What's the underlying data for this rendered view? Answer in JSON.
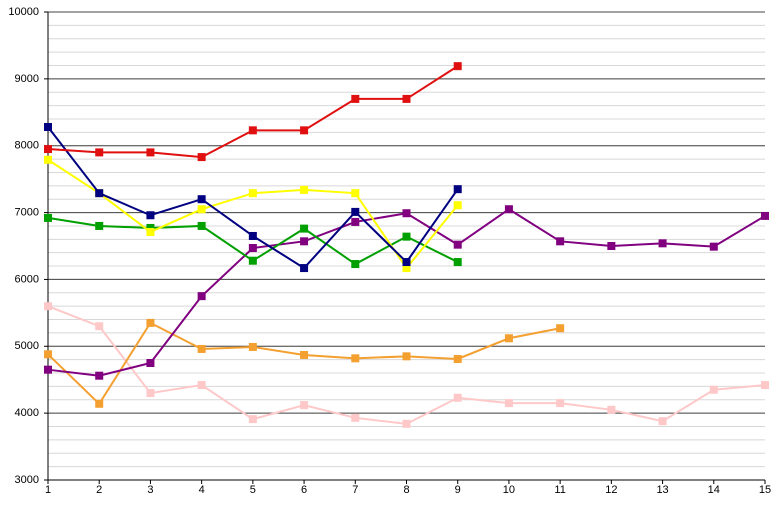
{
  "chart_data": {
    "type": "line",
    "x": [
      1,
      2,
      3,
      4,
      5,
      6,
      7,
      8,
      9,
      10,
      11,
      12,
      13,
      14,
      15
    ],
    "xlim": [
      1,
      15
    ],
    "xticks": [
      1,
      2,
      3,
      4,
      5,
      6,
      7,
      8,
      9,
      10,
      11,
      12,
      13,
      14,
      15
    ],
    "ylim": [
      3000,
      10000
    ],
    "yticks": [
      3000,
      4000,
      5000,
      6000,
      7000,
      8000,
      9000,
      10000
    ],
    "grid": true,
    "minor_grid_step": 200,
    "series": [
      {
        "color": "#ffc8c8",
        "values": [
          5600,
          5300,
          4300,
          4420,
          3910,
          4120,
          3930,
          3840,
          4230,
          4150,
          4150,
          4050,
          3880,
          4350,
          4420
        ]
      },
      {
        "color": "#f4a030",
        "values": [
          4880,
          4140,
          5350,
          4960,
          4990,
          4870,
          4820,
          4850,
          4810,
          5120,
          5270,
          null,
          null,
          null,
          null
        ]
      },
      {
        "color": "#800080",
        "values": [
          4650,
          4560,
          4750,
          5750,
          6470,
          6570,
          6860,
          6990,
          6520,
          7050,
          6570,
          6500,
          6540,
          6490,
          6950
        ]
      },
      {
        "color": "#00a000",
        "values": [
          6920,
          6800,
          6770,
          6800,
          6280,
          6760,
          6230,
          6640,
          6260,
          null,
          null,
          null,
          null,
          null,
          null
        ]
      },
      {
        "color": "#ffff00",
        "values": [
          7790,
          7290,
          6710,
          7050,
          7290,
          7340,
          7290,
          6170,
          7110,
          null,
          null,
          null,
          null,
          null,
          null
        ]
      },
      {
        "color": "#000080",
        "values": [
          8280,
          7290,
          6960,
          7200,
          6650,
          6170,
          7010,
          6260,
          7350,
          null,
          null,
          null,
          null,
          null,
          null
        ]
      },
      {
        "color": "#e01010",
        "values": [
          7950,
          7900,
          7900,
          7830,
          8230,
          8230,
          8700,
          8700,
          9190,
          null,
          null,
          null,
          null,
          null,
          null
        ]
      }
    ]
  }
}
